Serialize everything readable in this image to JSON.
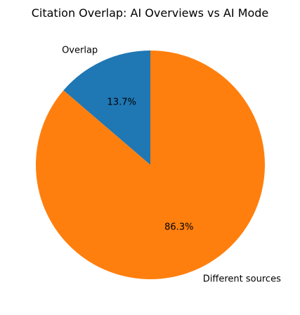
{
  "chart_data": {
    "type": "pie",
    "title": "Citation Overlap: AI Overviews vs AI Mode",
    "start_angle_deg": 90,
    "direction": "counterclockwise",
    "slices": [
      {
        "label": "Overlap",
        "value": 13.7,
        "pct_label": "13.7%",
        "color": "#1f77b4"
      },
      {
        "label": "Different sources",
        "value": 86.3,
        "pct_label": "86.3%",
        "color": "#ff7f0e"
      }
    ]
  }
}
